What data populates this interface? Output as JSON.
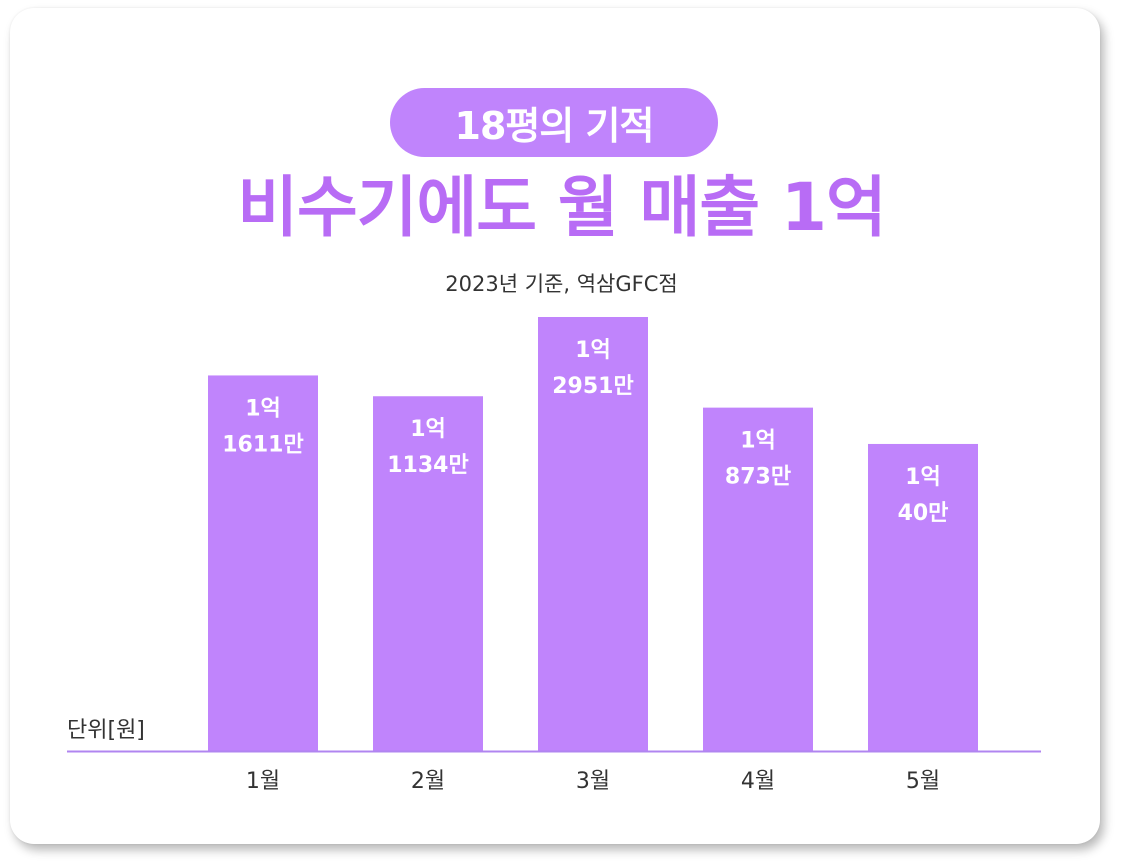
{
  "badge": "18평의 기적",
  "headline": "비수기에도 월 매출 1억",
  "subtitle": "2023년 기준, 역삼GFC점",
  "unit_label": "단위[원]",
  "colors": {
    "bar": "#c084fc",
    "headline": "#b86cf5",
    "baseline": "#b085f0",
    "bar_label": "#ffffff",
    "axis_text": "#333333"
  },
  "chart_data": {
    "type": "bar",
    "title": "비수기에도 월 매출 1억",
    "categories": [
      "1월",
      "2월",
      "3월",
      "4월",
      "5월"
    ],
    "values": [
      116110000,
      111340000,
      129510000,
      108730000,
      100400000
    ],
    "data_labels": [
      [
        "1억",
        "1611만"
      ],
      [
        "1억",
        "1134만"
      ],
      [
        "1억",
        "2951만"
      ],
      [
        "1억",
        "873만"
      ],
      [
        "1억",
        "40만"
      ]
    ],
    "ylabel": "단위[원]",
    "grid": false,
    "legend": "none"
  }
}
